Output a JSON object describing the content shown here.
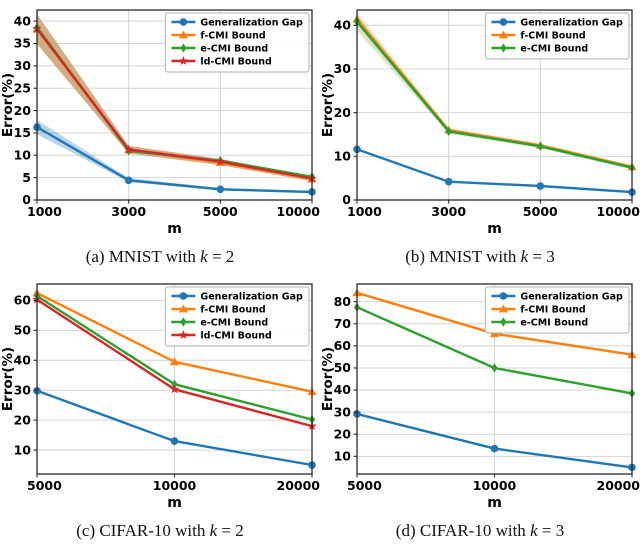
{
  "captions": [
    {
      "prefix": "(a) MNIST with ",
      "var": "k",
      "suffix": " = 2"
    },
    {
      "prefix": "(b) MNIST with ",
      "var": "k",
      "suffix": " = 3"
    },
    {
      "prefix": "(c) CIFAR-10 with ",
      "var": "k",
      "suffix": " = 2"
    },
    {
      "prefix": "(d) CIFAR-10 with ",
      "var": "k",
      "suffix": " = 3"
    }
  ],
  "styles": {
    "background": "#ffffff",
    "grid_color": "#d4d4d4",
    "spine_color": "#2a2a2a",
    "tick_color": "#000000",
    "legend_border": "#b0b0b0"
  },
  "chart_data": [
    {
      "type": "line",
      "title": "",
      "xlabel": "m",
      "ylabel": "Error(%)",
      "categories": [
        "1000",
        "3000",
        "5000",
        "10000"
      ],
      "ylim": [
        0,
        42.5
      ],
      "yticks": [
        0,
        5,
        10,
        15,
        20,
        25,
        30,
        35,
        40
      ],
      "grid": true,
      "legend_position": "upper right",
      "series": [
        {
          "name": "Generalization Gap",
          "color": "#1f77b4",
          "marker": "circle",
          "values": [
            16.3,
            4.4,
            2.4,
            1.8
          ],
          "band_upper": [
            17.9,
            4.9,
            2.7,
            2.0
          ],
          "band_lower": [
            14.7,
            4.0,
            2.1,
            1.6
          ],
          "band_opacity": 0.3
        },
        {
          "name": "f-CMI Bound",
          "color": "#ff7f0e",
          "marker": "triangle-up",
          "values": [
            38.2,
            11.2,
            8.4,
            4.7
          ],
          "band_upper": [
            41.6,
            12.1,
            9.2,
            5.3
          ],
          "band_lower": [
            34.9,
            10.4,
            7.8,
            4.2
          ],
          "band_color": "#c9a06f",
          "band_opacity": 0.85
        },
        {
          "name": "e-CMI Bound",
          "color": "#2ca02c",
          "marker": "diamond",
          "values": [
            38.6,
            11.0,
            8.8,
            5.2
          ]
        },
        {
          "name": "ld-CMI Bound",
          "color": "#d62728",
          "marker": "star",
          "values": [
            38.3,
            11.3,
            8.6,
            4.8
          ]
        }
      ]
    },
    {
      "type": "line",
      "title": "",
      "xlabel": "m",
      "ylabel": "Error(%)",
      "categories": [
        "1000",
        "3000",
        "5000",
        "10000"
      ],
      "ylim": [
        0,
        43.5
      ],
      "yticks": [
        0,
        10,
        20,
        30,
        40
      ],
      "grid": true,
      "legend_position": "upper right",
      "series": [
        {
          "name": "Generalization Gap",
          "color": "#1f77b4",
          "marker": "circle",
          "values": [
            11.6,
            4.2,
            3.2,
            1.8
          ]
        },
        {
          "name": "f-CMI Bound",
          "color": "#ff7f0e",
          "marker": "triangle-up",
          "values": [
            41.4,
            16.0,
            12.5,
            7.6
          ],
          "band_upper": [
            43.2,
            16.6,
            13.0,
            8.0
          ],
          "band_lower": [
            39.0,
            15.4,
            12.0,
            7.1
          ],
          "band_opacity": 0.15
        },
        {
          "name": "e-CMI Bound",
          "color": "#2ca02c",
          "marker": "diamond",
          "values": [
            40.8,
            15.7,
            12.3,
            7.4
          ],
          "band_upper": [
            42.6,
            16.2,
            12.8,
            7.8
          ],
          "band_lower": [
            38.6,
            15.1,
            11.8,
            6.9
          ],
          "band_opacity": 0.15
        }
      ]
    },
    {
      "type": "line",
      "title": "",
      "xlabel": "m",
      "ylabel": "Error(%)",
      "categories": [
        "5000",
        "10000",
        "20000"
      ],
      "ylim": [
        2,
        65.5
      ],
      "yticks": [
        10,
        20,
        30,
        40,
        50,
        60
      ],
      "grid": true,
      "legend_position": "upper right",
      "series": [
        {
          "name": "Generalization Gap",
          "color": "#1f77b4",
          "marker": "circle",
          "values": [
            29.8,
            13.0,
            5.0
          ]
        },
        {
          "name": "f-CMI Bound",
          "color": "#ff7f0e",
          "marker": "triangle-up",
          "values": [
            62.5,
            39.5,
            29.5
          ]
        },
        {
          "name": "e-CMI Bound",
          "color": "#2ca02c",
          "marker": "diamond",
          "values": [
            61.5,
            32.0,
            20.2
          ]
        },
        {
          "name": "ld-CMI Bound",
          "color": "#d62728",
          "marker": "star",
          "values": [
            60.3,
            30.3,
            18.0
          ]
        }
      ]
    },
    {
      "type": "line",
      "title": "",
      "xlabel": "m",
      "ylabel": "Error(%)",
      "categories": [
        "5000",
        "10000",
        "20000"
      ],
      "ylim": [
        2,
        88
      ],
      "yticks": [
        10,
        20,
        30,
        40,
        50,
        60,
        70,
        80
      ],
      "grid": true,
      "legend_position": "upper right",
      "series": [
        {
          "name": "Generalization Gap",
          "color": "#1f77b4",
          "marker": "circle",
          "values": [
            29.2,
            13.5,
            5.0
          ]
        },
        {
          "name": "f-CMI Bound",
          "color": "#ff7f0e",
          "marker": "triangle-up",
          "values": [
            84.0,
            65.5,
            56.0
          ]
        },
        {
          "name": "e-CMI Bound",
          "color": "#2ca02c",
          "marker": "diamond",
          "values": [
            77.5,
            50.0,
            38.5
          ]
        }
      ]
    }
  ]
}
